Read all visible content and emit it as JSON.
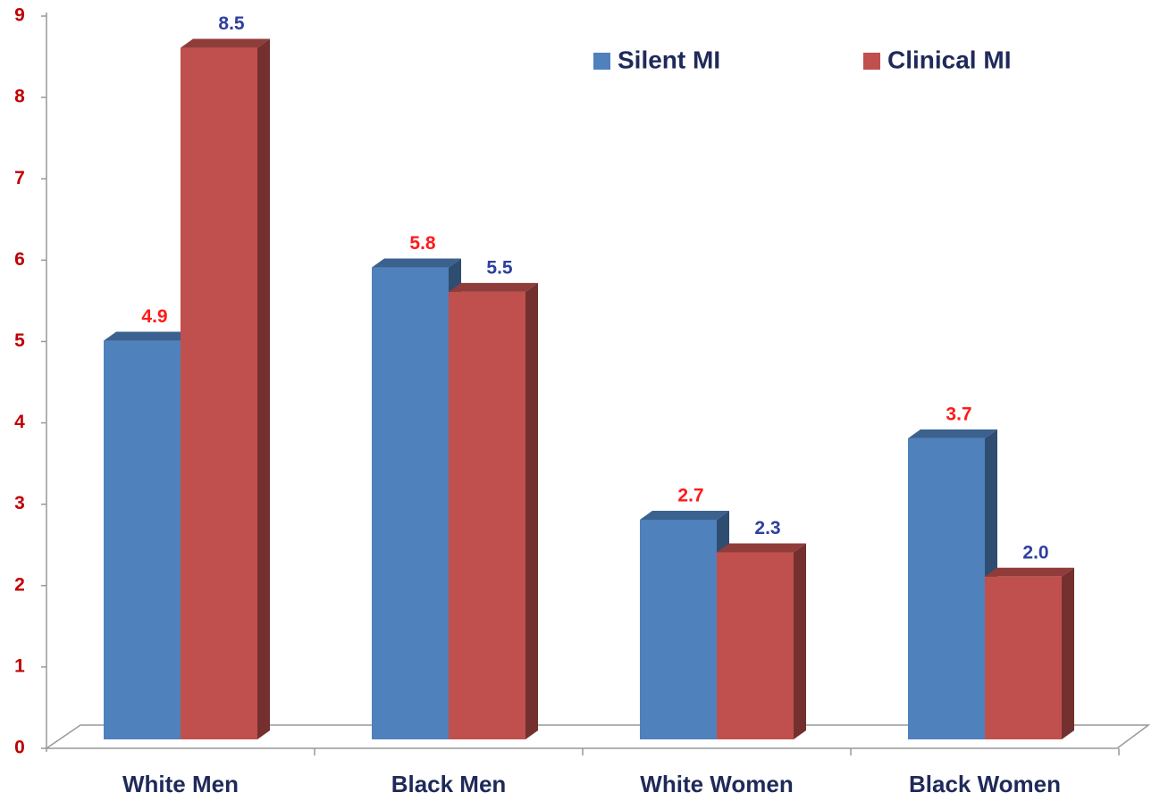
{
  "chart_data": {
    "type": "bar3d",
    "categories": [
      "White Men",
      "Black Men",
      "White Women",
      "Black Women"
    ],
    "series": [
      {
        "name": "Silent MI",
        "color": "#4f81bd",
        "values": [
          4.9,
          5.8,
          2.7,
          3.7
        ],
        "value_labels": [
          "4.9",
          "5.8",
          "2.7",
          "3.7"
        ],
        "label_color": "#ff1a1a"
      },
      {
        "name": "Clinical MI",
        "color": "#c0504d",
        "values": [
          8.5,
          5.5,
          2.3,
          2.0
        ],
        "value_labels": [
          "8.5",
          "5.5",
          "2.3",
          "2.0"
        ],
        "label_color": "#2e3f9e"
      }
    ],
    "ylim": [
      0,
      9
    ],
    "yticks": [
      0,
      1,
      2,
      3,
      4,
      5,
      6,
      7,
      8,
      9
    ],
    "legend": "top-right"
  }
}
